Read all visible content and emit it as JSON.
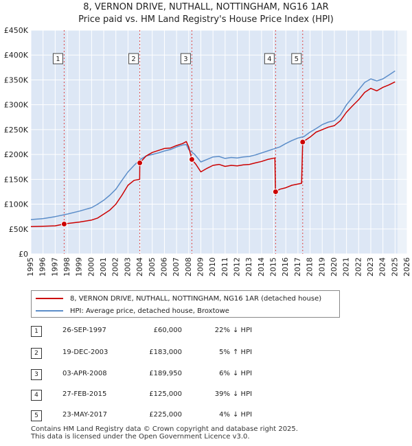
{
  "title_line1": "8, VERNON DRIVE, NUTHALL, NOTTINGHAM, NG16 1AR",
  "title_line2": "Price paid vs. HM Land Registry's House Price Index (HPI)",
  "colors": {
    "price_line": "#cc0000",
    "hpi_line": "#5b8dc9",
    "plot_bg": "#dde7f5",
    "shade": "#dce6f4",
    "grid": "#ffffff"
  },
  "chart_data": {
    "type": "line",
    "title": "8, VERNON DRIVE, NUTHALL, NOTTINGHAM, NG16 1AR — Price paid vs. HM Land Registry's House Price Index (HPI)",
    "xlim": [
      1995,
      2026
    ],
    "ylim": [
      0,
      450000
    ],
    "y_ticks": [
      0,
      50000,
      100000,
      150000,
      200000,
      250000,
      300000,
      350000,
      400000,
      450000
    ],
    "y_tick_labels": [
      "£0",
      "£50K",
      "£100K",
      "£150K",
      "£200K",
      "£250K",
      "£300K",
      "£350K",
      "£400K",
      "£450K"
    ],
    "x_ticks": [
      1995,
      1996,
      1997,
      1998,
      1999,
      2000,
      2001,
      2002,
      2003,
      2004,
      2005,
      2006,
      2007,
      2008,
      2009,
      2010,
      2011,
      2012,
      2013,
      2014,
      2015,
      2016,
      2017,
      2018,
      2019,
      2020,
      2021,
      2022,
      2023,
      2024,
      2025,
      2026
    ],
    "x_tick_labels": [
      "1995",
      "1996",
      "1997",
      "1998",
      "1999",
      "2000",
      "2001",
      "2002",
      "2003",
      "2004",
      "2005",
      "2006",
      "2007",
      "2008",
      "2009",
      "2010",
      "2011",
      "2012",
      "2013",
      "2014",
      "2015",
      "2016",
      "2017",
      "2018",
      "2019",
      "2020",
      "2021",
      "2022",
      "2023",
      "2024",
      "2025",
      "2026"
    ],
    "shaded_after": 2025.2,
    "series": [
      {
        "name": "8, VERNON DRIVE, NUTHALL, NOTTINGHAM, NG16 1AR (detached house)",
        "color": "#cc0000",
        "points": [
          [
            1995,
            55000
          ],
          [
            1996,
            55500
          ],
          [
            1997,
            56500
          ],
          [
            1997.74,
            60000
          ],
          [
            1998,
            61000
          ],
          [
            1999,
            64000
          ],
          [
            2000,
            68000
          ],
          [
            2000.5,
            72000
          ],
          [
            2001,
            80000
          ],
          [
            2001.5,
            88000
          ],
          [
            2002,
            100000
          ],
          [
            2002.5,
            118000
          ],
          [
            2003,
            138000
          ],
          [
            2003.5,
            148000
          ],
          [
            2003.96,
            150000
          ],
          [
            2003.97,
            183000
          ],
          [
            2004.5,
            197000
          ],
          [
            2005,
            204000
          ],
          [
            2005.5,
            208000
          ],
          [
            2006,
            212000
          ],
          [
            2006.5,
            213000
          ],
          [
            2007,
            218000
          ],
          [
            2007.5,
            222000
          ],
          [
            2007.8,
            226000
          ],
          [
            2008,
            215000
          ],
          [
            2008.26,
            189950
          ],
          [
            2008.6,
            180000
          ],
          [
            2009,
            165000
          ],
          [
            2009.5,
            172000
          ],
          [
            2010,
            178000
          ],
          [
            2010.5,
            180000
          ],
          [
            2011,
            176000
          ],
          [
            2011.5,
            178000
          ],
          [
            2012,
            177000
          ],
          [
            2012.5,
            179000
          ],
          [
            2013,
            180000
          ],
          [
            2013.5,
            183000
          ],
          [
            2014,
            186000
          ],
          [
            2014.5,
            190000
          ],
          [
            2015.1,
            193000
          ],
          [
            2015.15,
            125000
          ],
          [
            2015.5,
            130000
          ],
          [
            2016,
            133000
          ],
          [
            2016.5,
            138000
          ],
          [
            2017.3,
            142000
          ],
          [
            2017.39,
            225000
          ],
          [
            2018,
            235000
          ],
          [
            2018.5,
            245000
          ],
          [
            2019,
            250000
          ],
          [
            2019.5,
            255000
          ],
          [
            2020,
            258000
          ],
          [
            2020.5,
            268000
          ],
          [
            2021,
            285000
          ],
          [
            2021.5,
            298000
          ],
          [
            2022,
            310000
          ],
          [
            2022.5,
            325000
          ],
          [
            2023,
            333000
          ],
          [
            2023.5,
            328000
          ],
          [
            2024,
            335000
          ],
          [
            2024.5,
            340000
          ],
          [
            2025,
            346000
          ]
        ]
      },
      {
        "name": "HPI: Average price, detached house, Broxtowe",
        "color": "#5b8dc9",
        "points": [
          [
            1995,
            69000
          ],
          [
            1996,
            71000
          ],
          [
            1997,
            75000
          ],
          [
            1998,
            80000
          ],
          [
            1999,
            86000
          ],
          [
            2000,
            93000
          ],
          [
            2000.5,
            100000
          ],
          [
            2001,
            108000
          ],
          [
            2001.5,
            118000
          ],
          [
            2002,
            130000
          ],
          [
            2002.5,
            148000
          ],
          [
            2003,
            165000
          ],
          [
            2003.5,
            178000
          ],
          [
            2004,
            190000
          ],
          [
            2004.5,
            197000
          ],
          [
            2005,
            200000
          ],
          [
            2005.5,
            203000
          ],
          [
            2006,
            207000
          ],
          [
            2006.5,
            210000
          ],
          [
            2007,
            215000
          ],
          [
            2007.5,
            219000
          ],
          [
            2007.8,
            220000
          ],
          [
            2008,
            210000
          ],
          [
            2008.5,
            200000
          ],
          [
            2009,
            185000
          ],
          [
            2009.5,
            190000
          ],
          [
            2010,
            195000
          ],
          [
            2010.5,
            196000
          ],
          [
            2011,
            192000
          ],
          [
            2011.5,
            194000
          ],
          [
            2012,
            193000
          ],
          [
            2012.5,
            195000
          ],
          [
            2013,
            196000
          ],
          [
            2013.5,
            199000
          ],
          [
            2014,
            203000
          ],
          [
            2014.5,
            207000
          ],
          [
            2015,
            211000
          ],
          [
            2015.5,
            215000
          ],
          [
            2016,
            222000
          ],
          [
            2016.5,
            228000
          ],
          [
            2017,
            233000
          ],
          [
            2017.5,
            236000
          ],
          [
            2018,
            245000
          ],
          [
            2018.5,
            252000
          ],
          [
            2019,
            260000
          ],
          [
            2019.5,
            265000
          ],
          [
            2020,
            268000
          ],
          [
            2020.5,
            280000
          ],
          [
            2021,
            300000
          ],
          [
            2021.5,
            315000
          ],
          [
            2022,
            330000
          ],
          [
            2022.5,
            345000
          ],
          [
            2023,
            352000
          ],
          [
            2023.5,
            348000
          ],
          [
            2024,
            352000
          ],
          [
            2024.5,
            360000
          ],
          [
            2025,
            368000
          ]
        ]
      }
    ],
    "transactions": [
      {
        "n": "1",
        "x": 1997.74,
        "y": 60000
      },
      {
        "n": "2",
        "x": 2003.97,
        "y": 183000
      },
      {
        "n": "3",
        "x": 2008.26,
        "y": 189950
      },
      {
        "n": "4",
        "x": 2015.16,
        "y": 125000
      },
      {
        "n": "5",
        "x": 2017.39,
        "y": 225000
      }
    ]
  },
  "legend": {
    "price_label": "8, VERNON DRIVE, NUTHALL, NOTTINGHAM, NG16 1AR (detached house)",
    "hpi_label": "HPI: Average price, detached house, Broxtowe"
  },
  "table": [
    {
      "n": "1",
      "date": "26-SEP-1997",
      "price": "£60,000",
      "delta": "22%",
      "dir": "↓ HPI"
    },
    {
      "n": "2",
      "date": "19-DEC-2003",
      "price": "£183,000",
      "delta": "5%",
      "dir": "↑ HPI"
    },
    {
      "n": "3",
      "date": "03-APR-2008",
      "price": "£189,950",
      "delta": "6%",
      "dir": "↓ HPI"
    },
    {
      "n": "4",
      "date": "27-FEB-2015",
      "price": "£125,000",
      "delta": "39%",
      "dir": "↓ HPI"
    },
    {
      "n": "5",
      "date": "23-MAY-2017",
      "price": "£225,000",
      "delta": "4%",
      "dir": "↓ HPI"
    }
  ],
  "footer_line1": "Contains HM Land Registry data © Crown copyright and database right 2025.",
  "footer_line2": "This data is licensed under the Open Government Licence v3.0."
}
